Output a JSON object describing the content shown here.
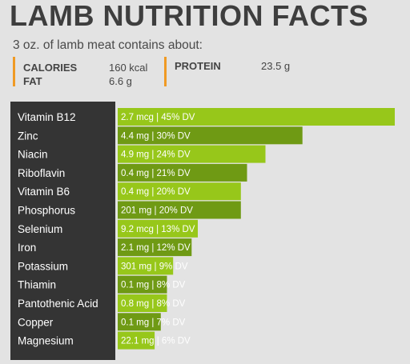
{
  "header": {
    "title": "LAMB NUTRITION FACTS",
    "subtitle": "3 oz. of lamb meat contains about:"
  },
  "macros": [
    {
      "label": "CALORIES",
      "value": "160 kcal"
    },
    {
      "label": "FAT",
      "value": "6.6 g"
    },
    {
      "label": "PROTEIN",
      "value": "23.5 g"
    }
  ],
  "colors": {
    "label_bg": "#343434",
    "bar_light": "#97c71a",
    "bar_dark": "#6f9a14",
    "accent": "#f09a24",
    "background": "#e3e3e3"
  },
  "chart_data": {
    "type": "bar",
    "orientation": "horizontal",
    "grid": false,
    "legend": "none",
    "xlim": [
      0,
      45
    ],
    "unit": "% DV",
    "categories": [
      "Vitamin B12",
      "Zinc",
      "Niacin",
      "Riboflavin",
      "Vitamin B6",
      "Phosphorus",
      "Selenium",
      "Iron",
      "Potassium",
      "Thiamin",
      "Pantothenic Acid",
      "Copper",
      "Magnesium"
    ],
    "values": [
      45,
      30,
      24,
      21,
      20,
      20,
      13,
      12,
      9,
      8,
      8,
      7,
      6
    ],
    "bar_labels": [
      "2.7 mcg | 45% DV",
      "4.4 mg | 30% DV",
      "4.9 mg | 24% DV",
      "0.4 mg | 21% DV",
      "0.4 mg | 20% DV",
      "201 mg | 20% DV",
      "9.2 mcg | 13% DV",
      "2.1 mg | 12% DV",
      "301 mg | 9% DV",
      "0.1 mg | 8% DV",
      "0.8 mg | 8% DV",
      "0.1 mg | 7% DV",
      "22.1 mg | 6% DV"
    ]
  }
}
